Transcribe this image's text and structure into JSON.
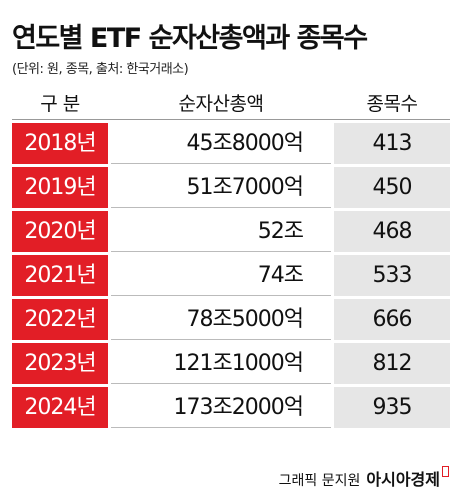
{
  "header": {
    "title": "연도별 ETF 순자산총액과 종목수",
    "subtitle": "(단위: 원, 종목, 출처: 한국거래소)"
  },
  "table": {
    "columns": [
      "구 분",
      "순자산총액",
      "종목수"
    ],
    "rows": [
      [
        "2018년",
        "45조8000억",
        "413"
      ],
      [
        "2019년",
        "51조7000억",
        "450"
      ],
      [
        "2020년",
        "52조",
        "468"
      ],
      [
        "2021년",
        "74조",
        "533"
      ],
      [
        "2022년",
        "78조5000억",
        "666"
      ],
      [
        "2023년",
        "121조1000억",
        "812"
      ],
      [
        "2024년",
        "173조2000억",
        "935"
      ]
    ]
  },
  "footer": {
    "credit": "그래픽 문지원",
    "brand": "아시아경제"
  }
}
